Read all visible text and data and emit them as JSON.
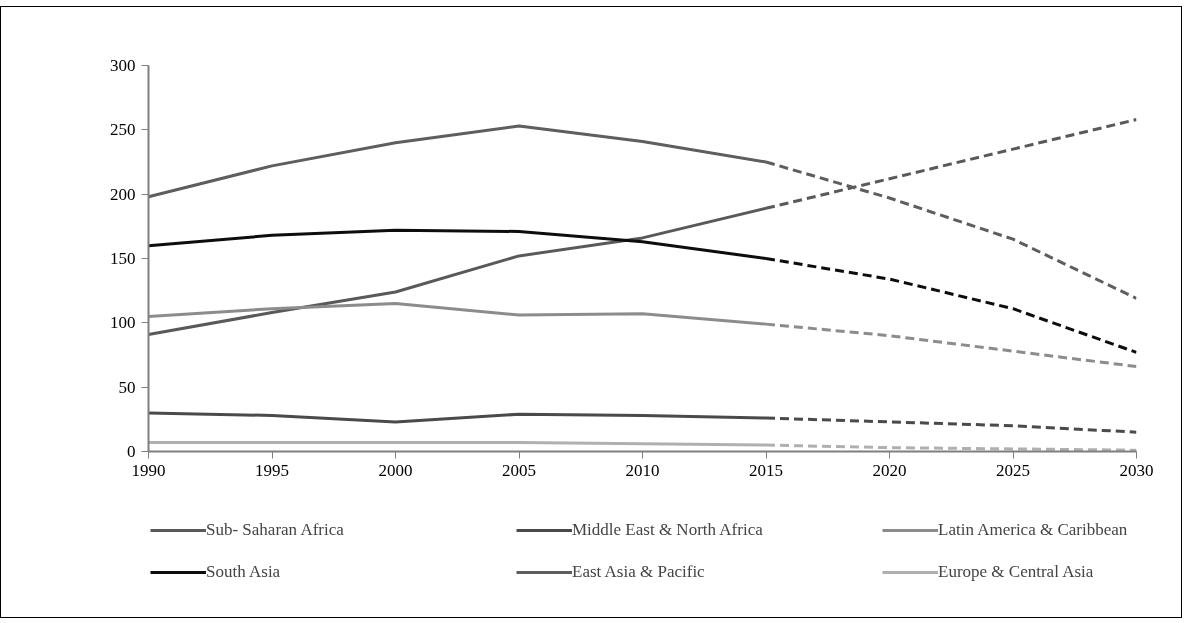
{
  "chart_data": {
    "type": "line",
    "x": [
      1990,
      1995,
      2000,
      2005,
      2010,
      2015,
      2020,
      2025,
      2030
    ],
    "xlim": [
      1990,
      2030
    ],
    "xticks": [
      1990,
      1995,
      2000,
      2005,
      2010,
      2015,
      2020,
      2025,
      2030
    ],
    "ylim": [
      0,
      300
    ],
    "yticks": [
      0,
      50,
      100,
      150,
      200,
      250,
      300
    ],
    "legend": "bottom",
    "series": [
      {
        "name": "Sub- Saharan Africa",
        "color": "#595959",
        "values": [
          91,
          108,
          124,
          152,
          166,
          189,
          null,
          null,
          null
        ]
      },
      {
        "name": "Middle East & North Africa",
        "color": "#4a4a4a",
        "values": [
          30,
          28,
          23,
          29,
          28,
          26,
          null,
          null,
          null
        ]
      },
      {
        "name": "Latin America & Caribbean",
        "color": "#8c8c8c",
        "values": [
          105,
          111,
          115,
          106,
          107,
          99,
          null,
          null,
          null
        ]
      },
      {
        "name": "South Asia",
        "color": "#0d0d0d",
        "values": [
          160,
          168,
          172,
          171,
          163,
          150,
          null,
          null,
          null
        ]
      },
      {
        "name": "East Asia & Pacific",
        "color": "#5e5e5e",
        "values": [
          198,
          222,
          240,
          253,
          241,
          225,
          null,
          null,
          null
        ]
      },
      {
        "name": "Europe & Central Asia",
        "color": "#b0b0b0",
        "values": [
          7,
          7,
          7,
          7,
          6,
          5,
          null,
          null,
          null
        ]
      },
      {
        "color": "#595959",
        "line_style": "dashed",
        "values": [
          null,
          null,
          null,
          null,
          null,
          189,
          212,
          235,
          258
        ]
      },
      {
        "color": "#4a4a4a",
        "line_style": "dashed",
        "values": [
          null,
          null,
          null,
          null,
          null,
          26,
          23,
          20,
          15
        ]
      },
      {
        "color": "#8c8c8c",
        "line_style": "dashed",
        "values": [
          null,
          null,
          null,
          null,
          null,
          99,
          90,
          78,
          66
        ]
      },
      {
        "color": "#0d0d0d",
        "line_style": "dashed",
        "values": [
          null,
          null,
          null,
          null,
          null,
          150,
          134,
          111,
          77
        ]
      },
      {
        "color": "#5e5e5e",
        "line_style": "dashed",
        "values": [
          null,
          null,
          null,
          null,
          null,
          225,
          197,
          165,
          119
        ]
      },
      {
        "color": "#b0b0b0",
        "line_style": "dashed",
        "values": [
          null,
          null,
          null,
          null,
          null,
          5,
          3,
          2,
          1
        ]
      }
    ]
  }
}
